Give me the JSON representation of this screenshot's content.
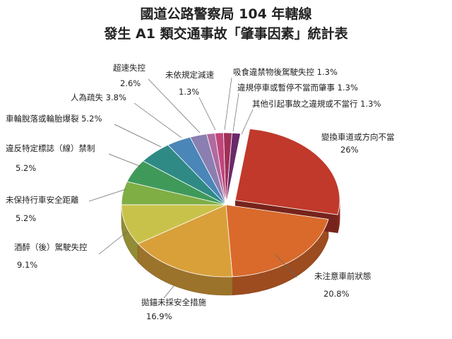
{
  "title": {
    "line1": "國道公路警察局 104 年轄線",
    "line2": "發生 A1 類交通事故「肇事因素」統計表"
  },
  "chart_data": {
    "type": "pie",
    "title": "國道公路警察局 104 年轄線 發生 A1 類交通事故「肇事因素」統計表",
    "unit": "%",
    "slices": [
      {
        "name": "變換車道或方向不當",
        "value": 26,
        "label": "26%",
        "color": "#c0392b"
      },
      {
        "name": "未注意車前狀態",
        "value": 20.8,
        "label": "20.8%",
        "color": "#d96a2b"
      },
      {
        "name": "拋錨未採安全措施",
        "value": 16.9,
        "label": "16.9%",
        "color": "#d9a03a"
      },
      {
        "name": "酒醉（後）駕駛失控",
        "value": 9.1,
        "label": "9.1%",
        "color": "#c9c24a"
      },
      {
        "name": "未保持行車安全距離",
        "value": 5.2,
        "label": "5.2%",
        "color": "#7fae45"
      },
      {
        "name": "違反特定標誌（線）禁制",
        "value": 5.2,
        "label": "5.2%",
        "color": "#3f9a5a"
      },
      {
        "name": "車輪脫落或輪胎爆裂",
        "value": 5.2,
        "label": "5.2%",
        "color": "#2f8a86"
      },
      {
        "name": "人為疏失",
        "value": 3.8,
        "label": "3.8%",
        "color": "#4a86b8"
      },
      {
        "name": "超速失控",
        "value": 2.6,
        "label": "2.6%",
        "color": "#8a7fb0"
      },
      {
        "name": "未依規定減速",
        "value": 1.3,
        "label": "1.3%",
        "color": "#b06aa0"
      },
      {
        "name": "吸食違禁物後駕駛失控",
        "value": 1.3,
        "label": "1.3%",
        "color": "#c0467a"
      },
      {
        "name": "違規停車或暫停不當而肇事",
        "value": 1.3,
        "label": "1.3%",
        "color": "#a03058"
      },
      {
        "name": "其他引起事故之違規或不當行",
        "value": 1.3,
        "label": "1.3%",
        "color": "#6a2a6a"
      }
    ]
  }
}
